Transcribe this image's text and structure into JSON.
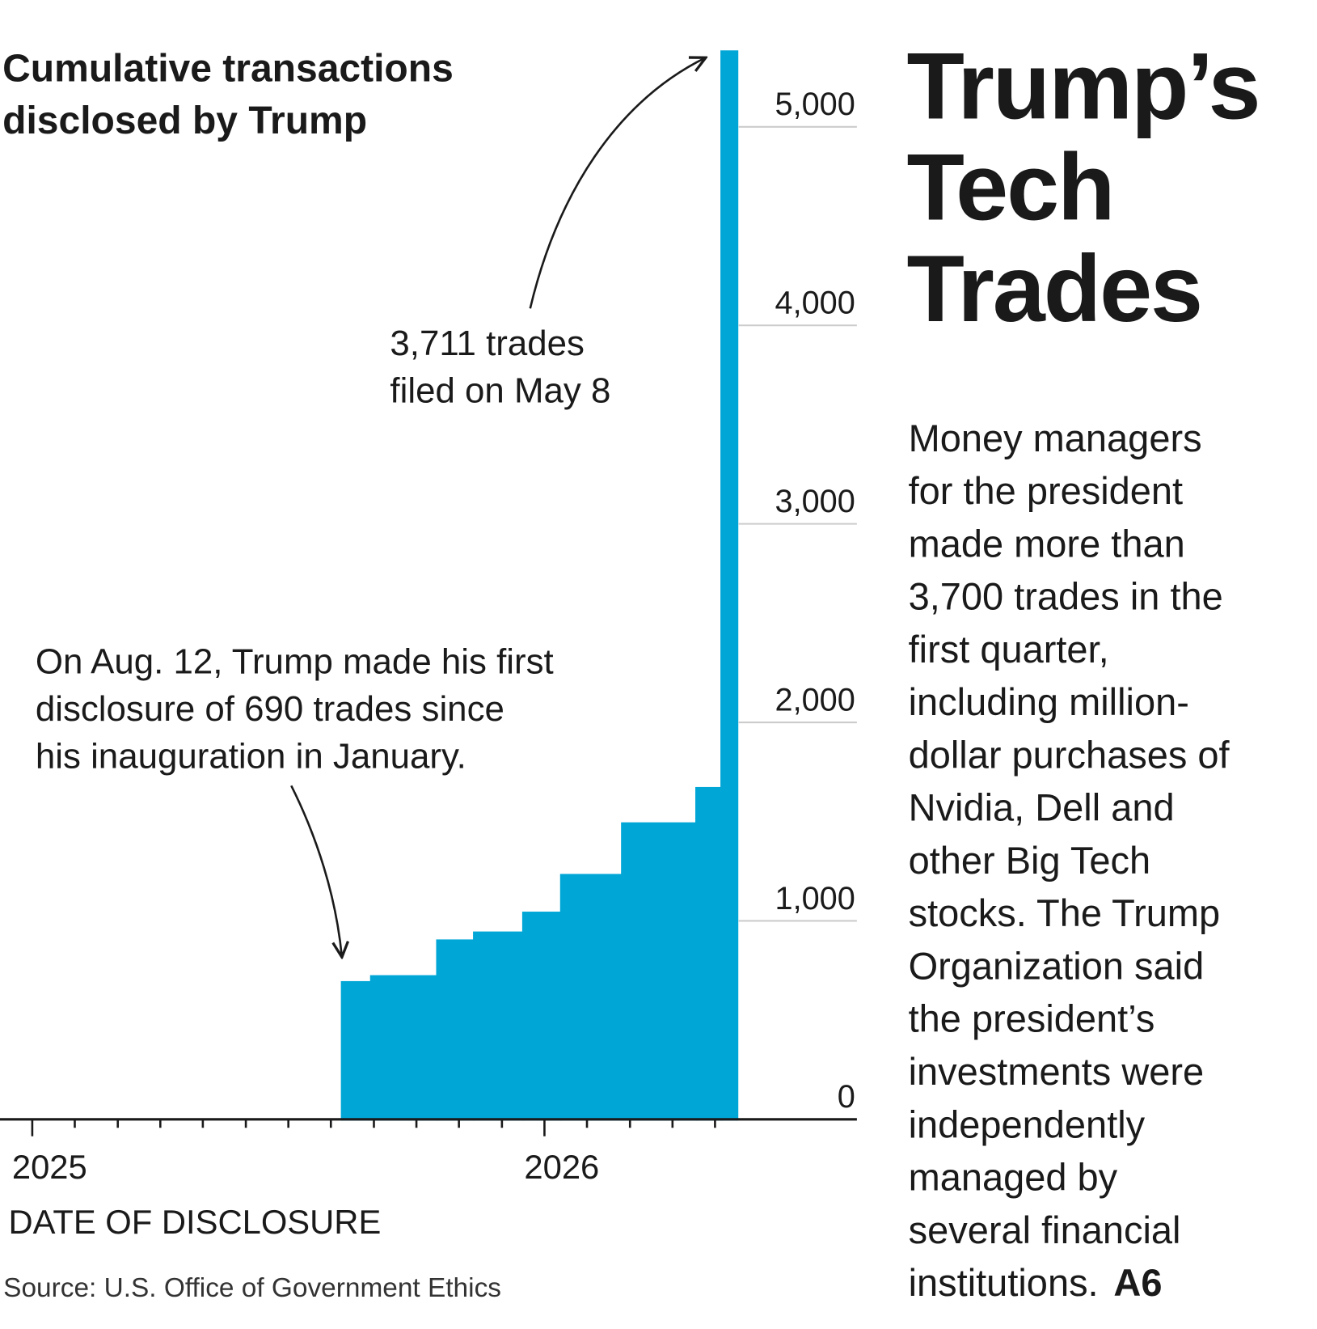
{
  "chart_data": {
    "type": "step-area",
    "title": [
      "Cumulative transactions",
      "disclosed by Trump"
    ],
    "x_label": "DATE OF DISCLOSURE",
    "source": "Source: U.S. Office of Government Ethics",
    "annotations": [
      {
        "lines": [
          "3,711 trades",
          "filed on May 8"
        ]
      },
      {
        "lines": [
          "On Aug. 12, Trump made his first",
          "disclosure of 690 trades since",
          "his inauguration in January."
        ]
      }
    ],
    "color": "#00a6d6",
    "x": [
      2025.0,
      2025.605,
      2025.662,
      2025.791,
      2025.863,
      2025.959,
      2026.033,
      2026.152,
      2026.297,
      2026.346,
      2026.376
    ],
    "values": [
      0,
      690,
      720,
      900,
      940,
      1040,
      1230,
      1490,
      1668,
      5379,
      5379
    ],
    "xlim": [
      2024.937,
      2026.61
    ],
    "xticks": [
      2025,
      2026
    ],
    "xminor_ticks": [
      2025.083,
      2025.167,
      2025.25,
      2025.333,
      2025.417,
      2025.5,
      2025.583,
      2025.667,
      2025.75,
      2025.833,
      2025.917,
      2026.083,
      2026.167,
      2026.25,
      2026.333
    ],
    "ylim": [
      0,
      5500
    ],
    "yticks": [
      0,
      {
        "value": 1000,
        "label": "1,000"
      },
      {
        "value": 2000,
        "label": "2,000"
      },
      {
        "value": 3000,
        "label": "3,000"
      },
      {
        "value": 4000,
        "label": "4,000"
      },
      {
        "value": 5000,
        "label": "5,000"
      }
    ],
    "grid": true
  },
  "side_text": {
    "headline": [
      "Trump’s",
      "Tech",
      "Trades"
    ],
    "body": [
      "Money managers",
      "for the president",
      "made more than",
      "3,700 trades in the",
      "first quarter,",
      "including million-",
      "dollar purchases of",
      "Nvidia, Dell and",
      "other Big Tech",
      "stocks. The Trump",
      "Organization said",
      "the president’s",
      "investments were",
      "independently",
      "managed by",
      "several financial",
      "institutions."
    ],
    "page_ref": "A6"
  }
}
